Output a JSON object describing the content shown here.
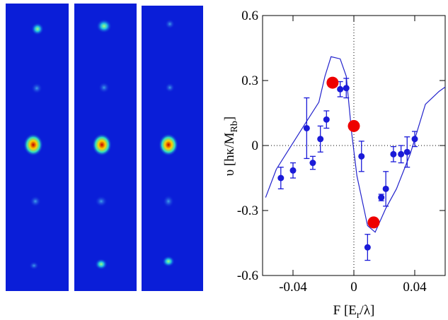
{
  "chart_data": {
    "type": "scatter",
    "xlabel": {
      "main": "F [E",
      "sub": "r",
      "end": "/λ]"
    },
    "ylabel": {
      "main": "υ [hκ/M",
      "sub": "Rb",
      "end": "]"
    },
    "xlim": [
      -0.06,
      0.06
    ],
    "xticks": [
      -0.04,
      0,
      0.04
    ],
    "ylim": [
      -0.6,
      0.6
    ],
    "yticks": [
      -0.6,
      -0.3,
      0,
      0.3,
      0.6
    ],
    "points": {
      "color": "#1a1ad8",
      "x": [
        -0.048,
        -0.04,
        -0.031,
        -0.027,
        -0.022,
        -0.018,
        -0.009,
        -0.005,
        0.005,
        0.009,
        0.018,
        0.021,
        0.026,
        0.031,
        0.035,
        0.04
      ],
      "y": [
        -0.15,
        -0.115,
        0.08,
        -0.08,
        0.03,
        0.12,
        0.26,
        0.265,
        -0.05,
        -0.47,
        -0.24,
        -0.2,
        -0.04,
        -0.04,
        -0.03,
        0.03
      ],
      "err": [
        0.05,
        0.035,
        0.14,
        0.03,
        0.06,
        0.04,
        0.035,
        0.045,
        0.07,
        0.06,
        0.015,
        0.08,
        0.035,
        0.04,
        0.07,
        0.035
      ]
    },
    "highlights": {
      "color": "#ee0000",
      "x": [
        -0.014,
        0,
        0.013
      ],
      "y": [
        0.29,
        0.09,
        -0.355
      ]
    },
    "curve": {
      "color": "#2222cc",
      "x": [
        -0.058,
        -0.051,
        -0.042,
        -0.033,
        -0.023,
        -0.019,
        -0.015,
        -0.009,
        -0.005,
        -0.0014,
        0.002,
        0.009,
        0.014,
        0.021,
        0.028,
        0.037,
        0.047,
        0.056,
        0.06
      ],
      "y": [
        -0.24,
        -0.11,
        -0.01,
        0.09,
        0.2,
        0.32,
        0.41,
        0.4,
        0.32,
        0.055,
        -0.14,
        -0.37,
        -0.4,
        -0.29,
        -0.2,
        -0.04,
        0.19,
        0.25,
        0.27
      ]
    }
  }
}
